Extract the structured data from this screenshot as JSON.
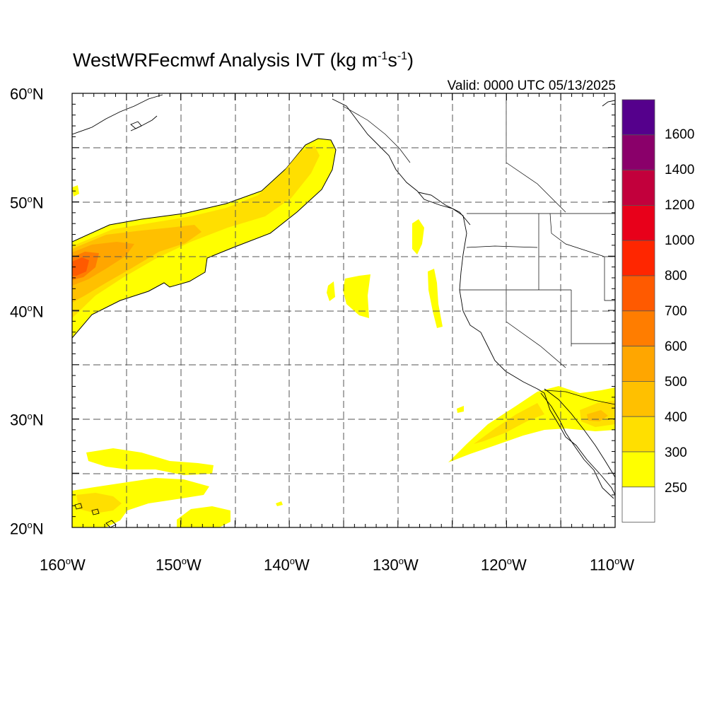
{
  "title": {
    "prefix": "WestWRFecmwf Analysis IVT (kg m",
    "exp1": "-1",
    "mid": "s",
    "exp2": "-1",
    "suffix": ")"
  },
  "valid_text": "Valid: 0000 UTC 05/13/2025",
  "degree_symbol": "o",
  "lat_labels": [
    {
      "num": "60",
      "hem": "N"
    },
    {
      "num": "50",
      "hem": "N"
    },
    {
      "num": "40",
      "hem": "N"
    },
    {
      "num": "30",
      "hem": "N"
    },
    {
      "num": "20",
      "hem": "N"
    }
  ],
  "lon_labels": [
    {
      "num": "160",
      "hem": "W"
    },
    {
      "num": "150",
      "hem": "W"
    },
    {
      "num": "140",
      "hem": "W"
    },
    {
      "num": "130",
      "hem": "W"
    },
    {
      "num": "120",
      "hem": "W"
    },
    {
      "num": "110",
      "hem": "W"
    }
  ],
  "colorbar": {
    "labels": [
      "1600",
      "1400",
      "1200",
      "1000",
      "800",
      "700",
      "600",
      "500",
      "400",
      "300",
      "250"
    ],
    "colors_top_to_bottom": [
      "#55008c",
      "#8a006a",
      "#c2003c",
      "#e8001a",
      "#ff2600",
      "#ff5a00",
      "#ff7d00",
      "#ffa600",
      "#ffc000",
      "#ffdf00",
      "#ffff00",
      "#ffffff"
    ]
  },
  "map": {
    "extent": {
      "lon_min": -160,
      "lon_max": -110,
      "lat_min": 20,
      "lat_max": 60
    },
    "gridline_interval_deg": 5,
    "ivt_unit": "kg m-1 s-1"
  }
}
